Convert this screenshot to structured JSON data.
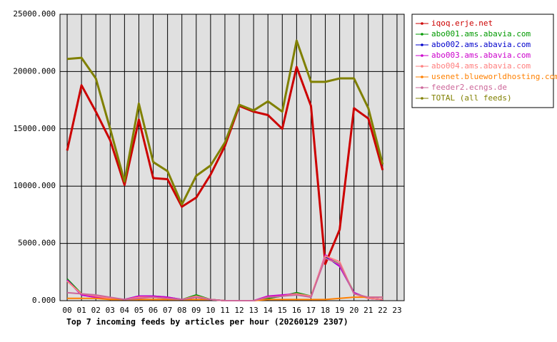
{
  "chart_data": {
    "type": "line",
    "title": "Top 7 incoming feeds by articles per hour (20260129 2307)",
    "categories": [
      "00",
      "01",
      "02",
      "03",
      "04",
      "05",
      "06",
      "07",
      "08",
      "09",
      "10",
      "11",
      "12",
      "13",
      "14",
      "15",
      "16",
      "17",
      "18",
      "19",
      "20",
      "21",
      "22",
      "23"
    ],
    "ylim": [
      0,
      25000
    ],
    "yticks": [
      {
        "value": 0,
        "label": "0.000"
      },
      {
        "value": 5000,
        "label": "5000.000"
      },
      {
        "value": 10000,
        "label": "10000.000"
      },
      {
        "value": 15000,
        "label": "15000.000"
      },
      {
        "value": 20000,
        "label": "20000.000"
      },
      {
        "value": 25000,
        "label": "25000.000"
      }
    ],
    "grid": true,
    "legend": "right",
    "series": [
      {
        "name": "iqoq.erje.net",
        "color": "#cc0000",
        "values": [
          13100,
          18800,
          16500,
          14000,
          10100,
          15800,
          10700,
          10600,
          8200,
          9000,
          11000,
          13500,
          17000,
          16500,
          16200,
          15000,
          20400,
          17000,
          3200,
          6200,
          16800,
          15900,
          11400,
          null
        ]
      },
      {
        "name": "abo001.ams.abavia.com",
        "color": "#009900",
        "values": [
          1900,
          600,
          300,
          200,
          100,
          300,
          300,
          200,
          100,
          500,
          100,
          0,
          0,
          0,
          200,
          400,
          700,
          400,
          3800,
          3200,
          700,
          200,
          100,
          null
        ]
      },
      {
        "name": "abo002.ams.abavia.com",
        "color": "#0000cc",
        "values": [
          1800,
          500,
          300,
          200,
          100,
          400,
          400,
          300,
          100,
          300,
          100,
          0,
          0,
          0,
          300,
          400,
          600,
          300,
          3900,
          3000,
          700,
          200,
          100,
          null
        ]
      },
      {
        "name": "abo003.ams.abavia.com",
        "color": "#cc00cc",
        "values": [
          1800,
          500,
          300,
          200,
          100,
          400,
          400,
          300,
          100,
          300,
          100,
          0,
          0,
          0,
          400,
          500,
          600,
          300,
          4000,
          3000,
          700,
          200,
          100,
          null
        ]
      },
      {
        "name": "abo004.ams.abavia.com",
        "color": "#ff8080",
        "values": [
          1700,
          600,
          400,
          200,
          100,
          300,
          300,
          200,
          100,
          400,
          100,
          0,
          0,
          0,
          300,
          400,
          600,
          400,
          3900,
          3400,
          600,
          200,
          100,
          null
        ]
      },
      {
        "name": "usenet.blueworldhosting.com",
        "color": "#ff8000",
        "values": [
          200,
          200,
          200,
          100,
          100,
          100,
          100,
          100,
          100,
          100,
          100,
          0,
          0,
          0,
          100,
          100,
          100,
          100,
          100,
          200,
          300,
          300,
          300,
          null
        ]
      },
      {
        "name": "feeder2.ecngs.de",
        "color": "#cc6699",
        "values": [
          700,
          600,
          500,
          300,
          100,
          200,
          300,
          200,
          100,
          300,
          100,
          0,
          0,
          0,
          300,
          400,
          500,
          300,
          3700,
          3200,
          600,
          300,
          300,
          null
        ]
      },
      {
        "name": "TOTAL (all feeds)",
        "color": "#808000",
        "values": [
          21100,
          21200,
          19400,
          15000,
          10400,
          17200,
          12100,
          11300,
          8400,
          10900,
          11800,
          13800,
          17100,
          16600,
          17400,
          16500,
          22700,
          19100,
          19100,
          19400,
          19400,
          16800,
          11900,
          null
        ]
      }
    ]
  }
}
